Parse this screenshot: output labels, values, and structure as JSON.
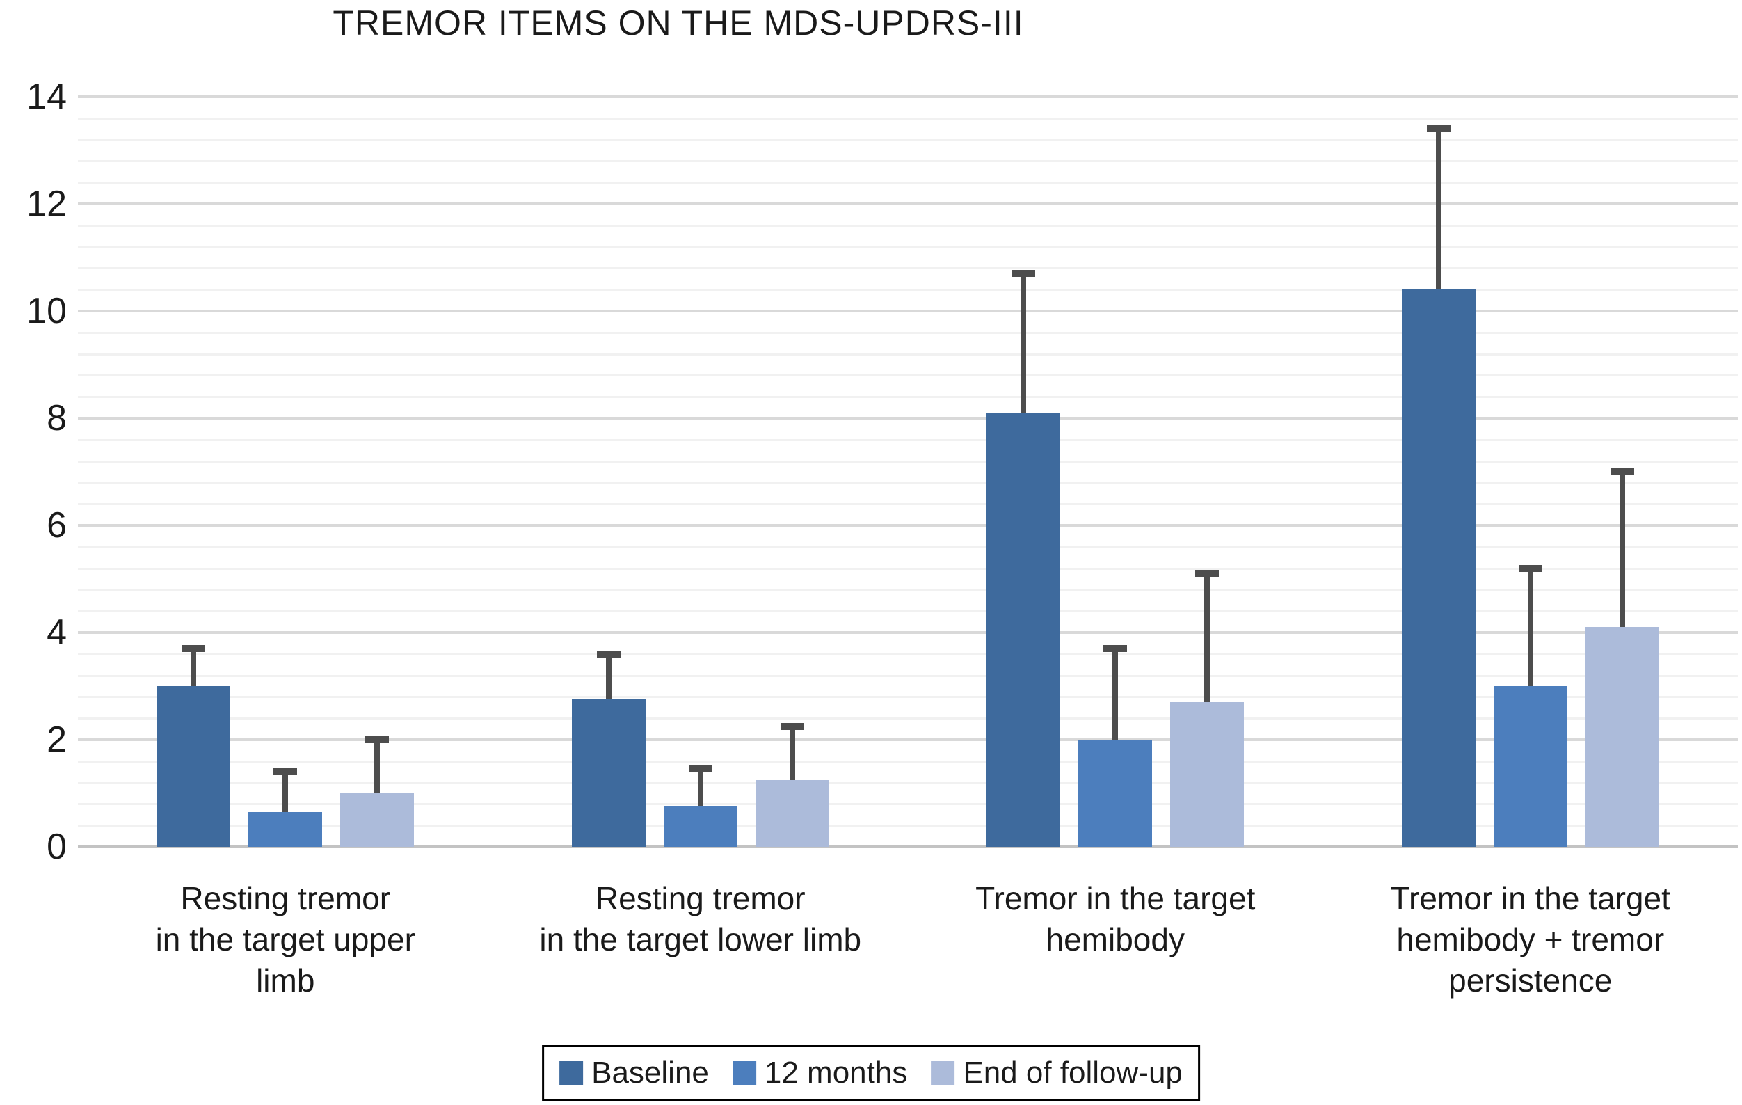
{
  "title": "TREMOR ITEMS ON THE MDS-UPDRS-III",
  "chart_data": {
    "type": "bar",
    "title": "TREMOR ITEMS ON THE MDS-UPDRS-III",
    "categories": [
      "Resting tremor\nin the target upper\nlimb",
      "Resting tremor\nin the target lower limb",
      "Tremor in the target\nhemibody",
      "Tremor in the target\nhemibody + tremor\npersistence"
    ],
    "series": [
      {
        "name": "Baseline",
        "color": "#3E6A9D",
        "values": [
          3.0,
          2.75,
          8.1,
          10.4
        ],
        "error_top": [
          3.7,
          3.6,
          10.7,
          13.4
        ]
      },
      {
        "name": "12 months",
        "color": "#4C7EBD",
        "values": [
          0.65,
          0.75,
          2.0,
          3.0
        ],
        "error_top": [
          1.4,
          1.45,
          3.7,
          5.2
        ]
      },
      {
        "name": "End of follow-up",
        "color": "#ACBBDA",
        "values": [
          1.0,
          1.25,
          2.7,
          4.1
        ],
        "error_top": [
          2.0,
          2.25,
          5.1,
          7.0
        ]
      }
    ],
    "ylabel": "",
    "xlabel": "",
    "ylim": [
      0,
      14
    ],
    "y_major_ticks": [
      0,
      2,
      4,
      6,
      8,
      10,
      12,
      14
    ],
    "y_minor_step": 0.4,
    "grid": "horizontal",
    "legend_position": "bottom",
    "error_bar_color": "#4D4D4D",
    "gridline_major_color": "#D9D9D9",
    "gridline_minor_color": "#F1F1F1",
    "axis_line_color": "#C3C3C3"
  }
}
